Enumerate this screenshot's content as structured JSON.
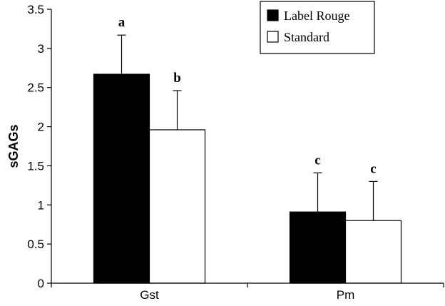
{
  "chart_data": {
    "type": "bar",
    "categories": [
      "Gst",
      "Pm"
    ],
    "series": [
      {
        "name": "Label Rouge",
        "color": "#000000",
        "values": [
          2.67,
          0.91
        ],
        "errors": [
          0.5,
          0.5
        ],
        "sig_labels": [
          "a",
          "c"
        ]
      },
      {
        "name": "Standard",
        "color": "#ffffff",
        "values": [
          1.96,
          0.8
        ],
        "errors": [
          0.5,
          0.5
        ],
        "sig_labels": [
          "b",
          "c"
        ]
      }
    ],
    "ylabel": "sGAGs",
    "xlabel": "",
    "ylim": [
      0,
      3.5
    ],
    "yticks": [
      "0",
      "0.5",
      "1",
      "1.5",
      "2",
      "2.5",
      "3",
      "3.5"
    ],
    "grid": false,
    "legend_position": "top-right"
  }
}
